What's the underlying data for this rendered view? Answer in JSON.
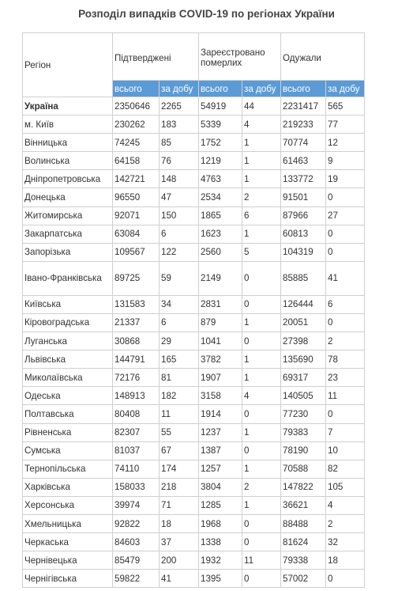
{
  "title": "Розподіл випадків COVID-19 по регіонах України",
  "header": {
    "region": "Регіон",
    "confirmed": "Підтверджені",
    "deaths": "Зареєстровано померлих",
    "recovered": "Одужали",
    "total": "всього",
    "per_day": "за добу"
  },
  "rows": [
    {
      "region": "Україна",
      "c_total": "2350646",
      "c_day": "2265",
      "d_total": "54919",
      "d_day": "44",
      "r_total": "2231417",
      "r_day": "565"
    },
    {
      "region": "м. Київ",
      "c_total": "230262",
      "c_day": "183",
      "d_total": "5339",
      "d_day": "4",
      "r_total": "219233",
      "r_day": "77"
    },
    {
      "region": "Вінницька",
      "c_total": "74245",
      "c_day": "85",
      "d_total": "1752",
      "d_day": "1",
      "r_total": "70774",
      "r_day": "12"
    },
    {
      "region": "Волинська",
      "c_total": "64158",
      "c_day": "76",
      "d_total": "1219",
      "d_day": "1",
      "r_total": "61463",
      "r_day": "9"
    },
    {
      "region": "Дніпропетровська",
      "c_total": "142721",
      "c_day": "148",
      "d_total": "4763",
      "d_day": "1",
      "r_total": "133772",
      "r_day": "19"
    },
    {
      "region": "Донецька",
      "c_total": "96550",
      "c_day": "47",
      "d_total": "2534",
      "d_day": "2",
      "r_total": "91501",
      "r_day": "0"
    },
    {
      "region": "Житомирська",
      "c_total": "92071",
      "c_day": "150",
      "d_total": "1865",
      "d_day": "6",
      "r_total": "87966",
      "r_day": "27"
    },
    {
      "region": "Закарпатська",
      "c_total": "63084",
      "c_day": "6",
      "d_total": "1623",
      "d_day": "1",
      "r_total": "60813",
      "r_day": "0"
    },
    {
      "region": "Запорізька",
      "c_total": "109567",
      "c_day": "122",
      "d_total": "2560",
      "d_day": "5",
      "r_total": "104319",
      "r_day": "0"
    },
    {
      "region": "Івано-Франківська",
      "c_total": "89725",
      "c_day": "59",
      "d_total": "2149",
      "d_day": "0",
      "r_total": "85885",
      "r_day": "41"
    },
    {
      "region": "Київська",
      "c_total": "131583",
      "c_day": "34",
      "d_total": "2831",
      "d_day": "0",
      "r_total": "126444",
      "r_day": "6"
    },
    {
      "region": "Кіровоградська",
      "c_total": "21337",
      "c_day": "6",
      "d_total": "879",
      "d_day": "1",
      "r_total": "20051",
      "r_day": "0"
    },
    {
      "region": "Луганська",
      "c_total": "30868",
      "c_day": "29",
      "d_total": "1041",
      "d_day": "0",
      "r_total": "27398",
      "r_day": "2"
    },
    {
      "region": "Львівська",
      "c_total": "144791",
      "c_day": "165",
      "d_total": "3782",
      "d_day": "1",
      "r_total": "135690",
      "r_day": "78"
    },
    {
      "region": "Миколаївська",
      "c_total": "72176",
      "c_day": "81",
      "d_total": "1907",
      "d_day": "1",
      "r_total": "69317",
      "r_day": "23"
    },
    {
      "region": "Одеська",
      "c_total": "148913",
      "c_day": "182",
      "d_total": "3158",
      "d_day": "4",
      "r_total": "140505",
      "r_day": "11"
    },
    {
      "region": "Полтавська",
      "c_total": "80408",
      "c_day": "11",
      "d_total": "1914",
      "d_day": "0",
      "r_total": "77230",
      "r_day": "0"
    },
    {
      "region": "Рівненська",
      "c_total": "82307",
      "c_day": "55",
      "d_total": "1237",
      "d_day": "1",
      "r_total": "79383",
      "r_day": "7"
    },
    {
      "region": "Сумська",
      "c_total": "81037",
      "c_day": "67",
      "d_total": "1387",
      "d_day": "0",
      "r_total": "78190",
      "r_day": "10"
    },
    {
      "region": "Тернопільська",
      "c_total": "74110",
      "c_day": "174",
      "d_total": "1257",
      "d_day": "1",
      "r_total": "70588",
      "r_day": "82"
    },
    {
      "region": "Харківська",
      "c_total": "158033",
      "c_day": "218",
      "d_total": "3804",
      "d_day": "2",
      "r_total": "147822",
      "r_day": "105"
    },
    {
      "region": "Херсонська",
      "c_total": "39974",
      "c_day": "71",
      "d_total": "1285",
      "d_day": "1",
      "r_total": "36621",
      "r_day": "4"
    },
    {
      "region": "Хмельницька",
      "c_total": "92822",
      "c_day": "18",
      "d_total": "1968",
      "d_day": "0",
      "r_total": "88488",
      "r_day": "2"
    },
    {
      "region": "Черкаська",
      "c_total": "84603",
      "c_day": "37",
      "d_total": "1338",
      "d_day": "0",
      "r_total": "81624",
      "r_day": "32"
    },
    {
      "region": "Чернівецька",
      "c_total": "85479",
      "c_day": "200",
      "d_total": "1932",
      "d_day": "11",
      "r_total": "79338",
      "r_day": "18"
    },
    {
      "region": "Чернігівська",
      "c_total": "59822",
      "c_day": "41",
      "d_total": "1395",
      "d_day": "0",
      "r_total": "57002",
      "r_day": "0"
    }
  ],
  "colors": {
    "subheader_bg": "#5b9bd5",
    "subheader_text": "#ffffff",
    "border": "#cfcfcf",
    "text": "#333333"
  }
}
